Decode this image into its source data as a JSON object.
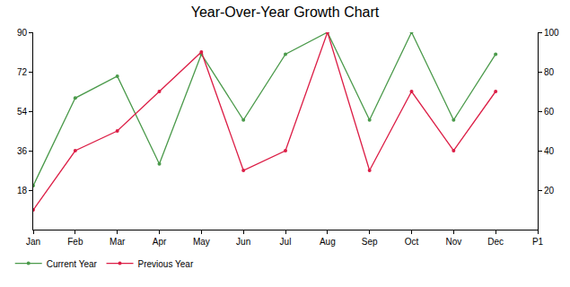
{
  "chart_data": {
    "type": "line",
    "title": "Year-Over-Year Growth Chart",
    "categories": [
      "Jan",
      "Feb",
      "Mar",
      "Apr",
      "May",
      "Jun",
      "Jul",
      "Aug",
      "Sep",
      "Oct",
      "Nov",
      "Dec",
      "P1"
    ],
    "series": [
      {
        "name": "Current Year",
        "color": "#4b9a4b",
        "values": [
          20,
          60,
          70,
          30,
          80,
          50,
          80,
          90,
          50,
          90,
          50,
          80,
          null
        ]
      },
      {
        "name": "Previous Year",
        "color": "#dc1e46",
        "axis": "y2",
        "values": [
          10,
          40,
          50,
          70,
          90,
          30,
          40,
          100,
          30,
          70,
          40,
          70,
          null
        ]
      }
    ],
    "ylim": [
      0,
      90
    ],
    "yticks": [
      18,
      36,
      54,
      72,
      90
    ],
    "y2lim": [
      0,
      100
    ],
    "y2ticks": [
      20,
      40,
      60,
      80,
      100
    ],
    "grid": false,
    "legend": "bottom-left",
    "marker": "circle",
    "line_style": "solid"
  }
}
